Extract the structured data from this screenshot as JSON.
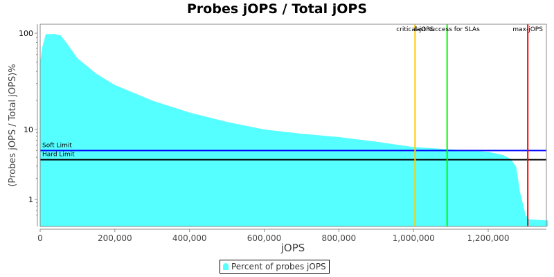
{
  "title": "Probes jOPS / Total jOPS",
  "legend": {
    "label": "Percent of probes jOPS",
    "color": "#55ffff"
  },
  "chart_data": {
    "type": "area",
    "title": "Probes jOPS / Total jOPS",
    "xlabel": "jOPS",
    "ylabel": "(Probes jOPS / Total jOPS)%",
    "yscale": "log",
    "xlim": [
      0,
      1360000
    ],
    "ylim": [
      0.5,
      130
    ],
    "xticks": [
      "0",
      "200,000",
      "400,000",
      "600,000",
      "800,000",
      "1,000,000",
      "1,200,000"
    ],
    "yticks": [
      "1",
      "10",
      "100"
    ],
    "series": [
      {
        "name": "Percent of probes jOPS",
        "color": "#55ffff",
        "x": [
          0,
          5000,
          15000,
          40000,
          55000,
          70000,
          100000,
          150000,
          200000,
          300000,
          400000,
          500000,
          600000,
          700000,
          800000,
          900000,
          1000000,
          1100000,
          1150000,
          1200000,
          1240000,
          1260000,
          1275000,
          1285000,
          1300000,
          1310000,
          1360000
        ],
        "values": [
          50,
          70,
          98,
          98,
          95,
          80,
          55,
          38,
          29,
          20,
          15,
          12,
          10,
          8.7,
          7.8,
          6.7,
          5.6,
          5.2,
          5.0,
          4.8,
          4.3,
          3.8,
          2.9,
          1.3,
          0.6,
          0.52,
          0.5
        ]
      }
    ],
    "hlines": [
      {
        "label": "Soft Limit",
        "value": 5.0,
        "color": "#0000ff"
      },
      {
        "label": "Hard Limit",
        "value": 3.7,
        "color": "#000000"
      }
    ],
    "vlines": [
      {
        "label": "critical-jOPS",
        "value": 1004000,
        "color": "#ffcc00"
      },
      {
        "label": "last success for SLAs",
        "value": 1090000,
        "color": "#00ff00"
      },
      {
        "label": "max-jOPS",
        "value": 1306000,
        "color": "#ff0000"
      }
    ],
    "grid": false,
    "legend_position": "bottom"
  }
}
